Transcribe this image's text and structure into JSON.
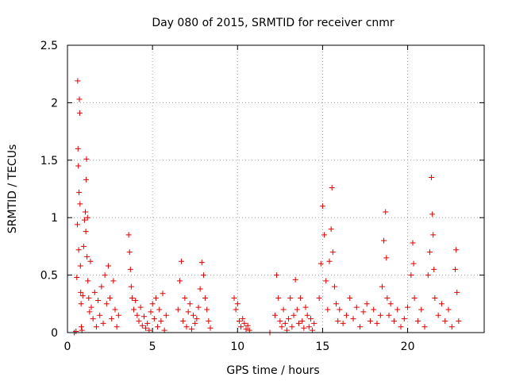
{
  "chart_data": {
    "type": "scatter",
    "title": "Day 080 of 2015, SRMTID for receiver cnmr",
    "xlabel": "GPS time / hours",
    "ylabel": "SRMTID / TECUs",
    "xlim": [
      0,
      24.5
    ],
    "ylim": [
      0,
      2.5
    ],
    "x_ticks": [
      0,
      5,
      10,
      15,
      20
    ],
    "x_tick_labels": [
      "0",
      "5",
      "10",
      "15",
      "20"
    ],
    "y_ticks": [
      0,
      0.5,
      1,
      1.5,
      2,
      2.5
    ],
    "y_tick_labels": [
      "0",
      "0.5",
      "1",
      "1.5",
      "2",
      "2.5"
    ],
    "grid": true,
    "marker": "plus",
    "color": "#e00000",
    "series": [
      {
        "values": [
          [
            0.4,
            0.0
          ],
          [
            0.5,
            0.01
          ],
          [
            0.55,
            0.48
          ],
          [
            0.58,
            0.94
          ],
          [
            0.6,
            2.19
          ],
          [
            0.62,
            1.6
          ],
          [
            0.64,
            1.45
          ],
          [
            0.66,
            0.72
          ],
          [
            0.68,
            1.22
          ],
          [
            0.7,
            2.03
          ],
          [
            0.72,
            1.91
          ],
          [
            0.74,
            1.12
          ],
          [
            0.76,
            0.58
          ],
          [
            0.78,
            0.35
          ],
          [
            0.8,
            0.25
          ],
          [
            0.82,
            0.05
          ],
          [
            0.85,
            0.02
          ],
          [
            0.9,
            0.32
          ],
          [
            0.95,
            0.75
          ],
          [
            1.0,
            0.98
          ],
          [
            1.05,
            1.05
          ],
          [
            1.08,
            0.88
          ],
          [
            1.1,
            1.33
          ],
          [
            1.12,
            1.51
          ],
          [
            1.15,
            0.66
          ],
          [
            1.18,
            1.0
          ],
          [
            1.2,
            0.45
          ],
          [
            1.25,
            0.3
          ],
          [
            1.3,
            0.18
          ],
          [
            1.35,
            0.62
          ],
          [
            1.4,
            0.22
          ],
          [
            1.5,
            0.12
          ],
          [
            1.6,
            0.35
          ],
          [
            1.7,
            0.05
          ],
          [
            1.8,
            0.28
          ],
          [
            1.9,
            0.15
          ],
          [
            2.0,
            0.4
          ],
          [
            2.1,
            0.08
          ],
          [
            2.2,
            0.5
          ],
          [
            2.3,
            0.25
          ],
          [
            2.4,
            0.58
          ],
          [
            2.5,
            0.3
          ],
          [
            2.6,
            0.12
          ],
          [
            2.7,
            0.45
          ],
          [
            2.8,
            0.2
          ],
          [
            2.9,
            0.05
          ],
          [
            3.0,
            0.15
          ],
          [
            3.6,
            0.85
          ],
          [
            3.65,
            0.7
          ],
          [
            3.7,
            0.55
          ],
          [
            3.75,
            0.4
          ],
          [
            3.8,
            0.3
          ],
          [
            3.9,
            0.2
          ],
          [
            4.0,
            0.28
          ],
          [
            4.1,
            0.15
          ],
          [
            4.2,
            0.1
          ],
          [
            4.3,
            0.22
          ],
          [
            4.4,
            0.06
          ],
          [
            4.5,
            0.14
          ],
          [
            4.6,
            0.04
          ],
          [
            4.7,
            0.08
          ],
          [
            4.8,
            0.02
          ],
          [
            4.9,
            0.18
          ],
          [
            5.0,
            0.25
          ],
          [
            5.1,
            0.12
          ],
          [
            5.2,
            0.3
          ],
          [
            5.3,
            0.05
          ],
          [
            5.4,
            0.2
          ],
          [
            5.5,
            0.1
          ],
          [
            5.6,
            0.34
          ],
          [
            5.7,
            0.02
          ],
          [
            5.8,
            0.15
          ],
          [
            6.5,
            0.2
          ],
          [
            6.6,
            0.45
          ],
          [
            6.7,
            0.62
          ],
          [
            6.8,
            0.1
          ],
          [
            6.9,
            0.3
          ],
          [
            7.0,
            0.05
          ],
          [
            7.1,
            0.18
          ],
          [
            7.2,
            0.25
          ],
          [
            7.3,
            0.03
          ],
          [
            7.4,
            0.15
          ],
          [
            7.5,
            0.08
          ],
          [
            7.6,
            0.12
          ],
          [
            7.7,
            0.22
          ],
          [
            7.8,
            0.38
          ],
          [
            7.9,
            0.61
          ],
          [
            8.0,
            0.5
          ],
          [
            8.1,
            0.3
          ],
          [
            8.2,
            0.2
          ],
          [
            8.3,
            0.1
          ],
          [
            8.4,
            0.04
          ],
          [
            9.8,
            0.3
          ],
          [
            9.9,
            0.2
          ],
          [
            10.0,
            0.25
          ],
          [
            10.1,
            0.1
          ],
          [
            10.2,
            0.05
          ],
          [
            10.3,
            0.12
          ],
          [
            10.4,
            0.08
          ],
          [
            10.5,
            0.03
          ],
          [
            10.6,
            0.06
          ],
          [
            10.7,
            0.02
          ],
          [
            11.9,
            0.0
          ],
          [
            12.2,
            0.15
          ],
          [
            12.3,
            0.5
          ],
          [
            12.4,
            0.3
          ],
          [
            12.5,
            0.1
          ],
          [
            12.6,
            0.05
          ],
          [
            12.7,
            0.2
          ],
          [
            12.8,
            0.08
          ],
          [
            12.9,
            0.02
          ],
          [
            13.0,
            0.12
          ],
          [
            13.1,
            0.3
          ],
          [
            13.2,
            0.05
          ],
          [
            13.3,
            0.15
          ],
          [
            13.4,
            0.46
          ],
          [
            13.5,
            0.2
          ],
          [
            13.6,
            0.08
          ],
          [
            13.7,
            0.3
          ],
          [
            13.8,
            0.1
          ],
          [
            13.9,
            0.04
          ],
          [
            14.0,
            0.22
          ],
          [
            14.1,
            0.15
          ],
          [
            14.2,
            0.05
          ],
          [
            14.3,
            0.12
          ],
          [
            14.4,
            0.02
          ],
          [
            14.5,
            0.08
          ],
          [
            14.8,
            0.3
          ],
          [
            14.9,
            0.6
          ],
          [
            15.0,
            1.1
          ],
          [
            15.1,
            0.85
          ],
          [
            15.2,
            0.45
          ],
          [
            15.3,
            0.2
          ],
          [
            15.4,
            0.62
          ],
          [
            15.5,
            0.9
          ],
          [
            15.55,
            1.26
          ],
          [
            15.6,
            0.7
          ],
          [
            15.7,
            0.4
          ],
          [
            15.8,
            0.25
          ],
          [
            15.9,
            0.1
          ],
          [
            16.0,
            0.2
          ],
          [
            16.2,
            0.08
          ],
          [
            16.4,
            0.15
          ],
          [
            16.6,
            0.3
          ],
          [
            16.8,
            0.12
          ],
          [
            17.0,
            0.22
          ],
          [
            17.2,
            0.05
          ],
          [
            17.4,
            0.18
          ],
          [
            17.6,
            0.25
          ],
          [
            17.8,
            0.1
          ],
          [
            18.0,
            0.2
          ],
          [
            18.2,
            0.08
          ],
          [
            18.4,
            0.15
          ],
          [
            18.5,
            0.4
          ],
          [
            18.6,
            0.8
          ],
          [
            18.7,
            1.05
          ],
          [
            18.75,
            0.65
          ],
          [
            18.8,
            0.3
          ],
          [
            18.9,
            0.15
          ],
          [
            19.0,
            0.25
          ],
          [
            19.2,
            0.1
          ],
          [
            19.4,
            0.2
          ],
          [
            19.6,
            0.05
          ],
          [
            19.8,
            0.12
          ],
          [
            20.0,
            0.22
          ],
          [
            20.2,
            0.5
          ],
          [
            20.3,
            0.78
          ],
          [
            20.35,
            0.6
          ],
          [
            20.4,
            0.3
          ],
          [
            20.6,
            0.1
          ],
          [
            20.8,
            0.2
          ],
          [
            21.0,
            0.05
          ],
          [
            21.2,
            0.5
          ],
          [
            21.3,
            0.7
          ],
          [
            21.4,
            1.35
          ],
          [
            21.45,
            1.03
          ],
          [
            21.5,
            0.85
          ],
          [
            21.55,
            0.55
          ],
          [
            21.6,
            0.3
          ],
          [
            21.8,
            0.15
          ],
          [
            22.0,
            0.25
          ],
          [
            22.2,
            0.1
          ],
          [
            22.4,
            0.2
          ],
          [
            22.6,
            0.05
          ],
          [
            22.8,
            0.55
          ],
          [
            22.85,
            0.72
          ],
          [
            22.9,
            0.35
          ],
          [
            23.0,
            0.1
          ]
        ]
      }
    ]
  }
}
